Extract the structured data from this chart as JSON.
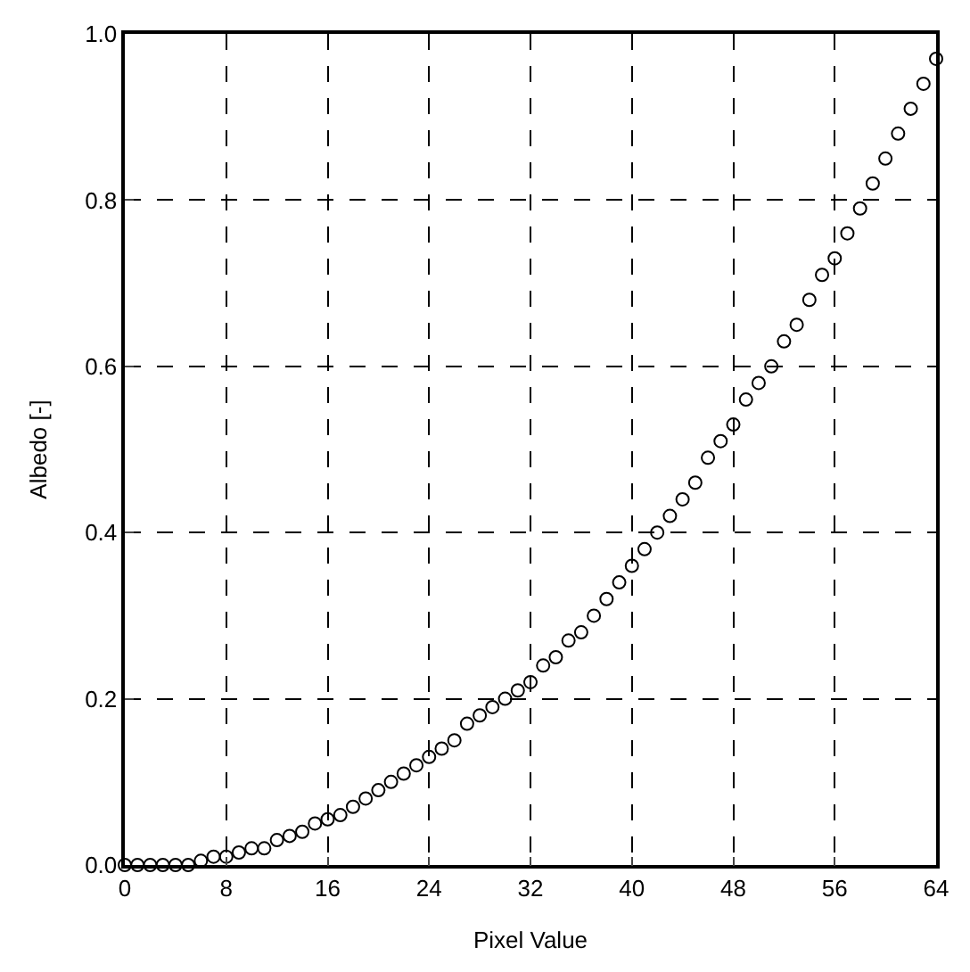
{
  "chart_data": {
    "type": "scatter",
    "xlabel": "Pixel Value",
    "ylabel": "Albedo [-]",
    "x": [
      0,
      1,
      2,
      3,
      4,
      5,
      6,
      7,
      8,
      9,
      10,
      11,
      12,
      13,
      14,
      15,
      16,
      17,
      18,
      19,
      20,
      21,
      22,
      23,
      24,
      25,
      26,
      27,
      28,
      29,
      30,
      31,
      32,
      33,
      34,
      35,
      36,
      37,
      38,
      39,
      40,
      41,
      42,
      43,
      44,
      45,
      46,
      47,
      48,
      49,
      50,
      51,
      52,
      53,
      54,
      55,
      56,
      57,
      58,
      59,
      60,
      61,
      62,
      63,
      64
    ],
    "series": [
      {
        "color": "#000000",
        "values": [
          0,
          0,
          0,
          0,
          0,
          0,
          0.005,
          0.01,
          0.01,
          0.015,
          0.02,
          0.02,
          0.03,
          0.035,
          0.04,
          0.05,
          0.055,
          0.06,
          0.07,
          0.08,
          0.09,
          0.1,
          0.11,
          0.12,
          0.13,
          0.14,
          0.15,
          0.17,
          0.18,
          0.19,
          0.2,
          0.21,
          0.22,
          0.24,
          0.25,
          0.27,
          0.28,
          0.3,
          0.32,
          0.34,
          0.36,
          0.38,
          0.4,
          0.42,
          0.44,
          0.46,
          0.49,
          0.51,
          0.53,
          0.56,
          0.58,
          0.6,
          0.63,
          0.65,
          0.68,
          0.71,
          0.73,
          0.76,
          0.79,
          0.82,
          0.85,
          0.88,
          0.91,
          0.94,
          0.97
        ]
      }
    ],
    "xlim": [
      0,
      64
    ],
    "xticks": [
      0,
      8,
      16,
      24,
      32,
      40,
      48,
      56,
      64
    ],
    "ylim": [
      0,
      1
    ],
    "yticks": [
      {
        "value": 0,
        "label": "0.0"
      },
      {
        "value": 0.2,
        "label": "0.2"
      },
      {
        "value": 0.4,
        "label": "0.4"
      },
      {
        "value": 0.6,
        "label": "0.6"
      },
      {
        "value": 0.8,
        "label": "0.8"
      },
      {
        "value": 1,
        "label": "1.0"
      }
    ],
    "grid": true,
    "legend": false,
    "marker": "circle"
  }
}
